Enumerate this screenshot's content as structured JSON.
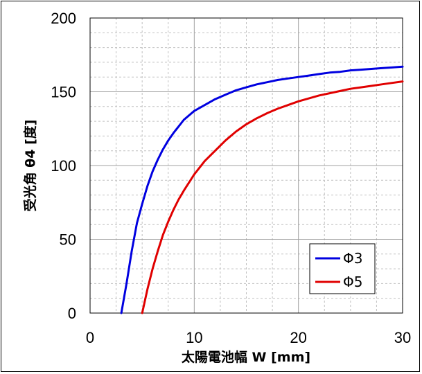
{
  "chart_data": {
    "type": "line",
    "title": "",
    "xlabel": "太陽電池幅 W [mm]",
    "ylabel": "受光角 θ4 [度]",
    "xlim": [
      0,
      30
    ],
    "ylim": [
      0,
      200
    ],
    "xticks": [
      "0",
      "10",
      "20",
      "30"
    ],
    "yticks": [
      "0",
      "50",
      "100",
      "150",
      "200"
    ],
    "grid": true,
    "legend_position": "bottom-right",
    "series": [
      {
        "name": "Φ3",
        "color": "#0000e0",
        "x": [
          3,
          3.5,
          4,
          4.5,
          5,
          5.5,
          6,
          6.5,
          7,
          7.5,
          8,
          9,
          10,
          11,
          12,
          13,
          14,
          15,
          16,
          17,
          18,
          19,
          20,
          21,
          22,
          23,
          24,
          25,
          26,
          27,
          28,
          29,
          30
        ],
        "y": [
          0,
          20,
          42,
          61,
          74,
          86,
          96,
          104,
          111,
          117,
          122,
          131,
          137,
          141,
          145,
          148,
          151,
          153,
          155,
          156.5,
          158,
          159,
          160,
          161,
          162,
          163,
          163.5,
          164.5,
          165,
          165.5,
          166,
          166.5,
          167
        ]
      },
      {
        "name": "Φ5",
        "color": "#e00000",
        "x": [
          5,
          5.5,
          6,
          6.5,
          7,
          7.5,
          8,
          8.5,
          9,
          10,
          11,
          12,
          13,
          14,
          15,
          16,
          17,
          18,
          19,
          20,
          21,
          22,
          23,
          24,
          25,
          26,
          27,
          28,
          29,
          30
        ],
        "y": [
          0,
          16,
          30,
          42,
          53,
          62,
          70,
          77,
          83,
          94,
          103,
          110,
          117,
          123,
          128,
          132,
          135.5,
          138.5,
          141,
          143.5,
          145.5,
          147.5,
          149,
          150.5,
          152,
          153,
          154,
          155,
          156,
          157
        ]
      }
    ]
  }
}
